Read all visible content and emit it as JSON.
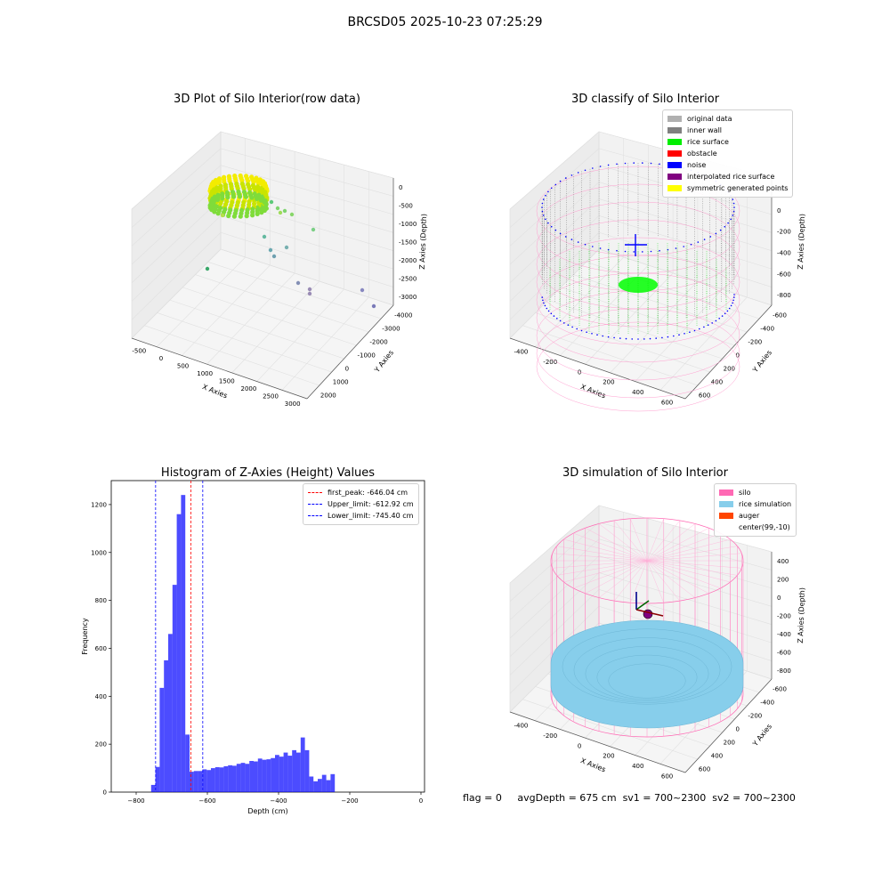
{
  "figure": {
    "suptitle": "BRCSD05 2025-10-23 07:25:29",
    "footer": {
      "flag": "flag = 0",
      "avgDepth": "avgDepth = 675 cm",
      "sv1": "sv1 = 700~2300",
      "sv2": "sv2 = 700~2300"
    }
  },
  "panels": {
    "raw": {
      "title": "3D Plot of Silo Interior(row data)",
      "xlabel": "X Axies",
      "ylabel": "Y Axies",
      "zlabel": "Z Axies (Depth)",
      "xticks": [
        "-500",
        "0",
        "500",
        "1000",
        "1500",
        "2000",
        "2500",
        "3000"
      ],
      "yticks": [
        "-4000",
        "-3000",
        "-2000",
        "-1000",
        "0",
        "1000",
        "2000"
      ],
      "zticks": [
        "0",
        "-500",
        "-1000",
        "-1500",
        "-2000",
        "-2500",
        "-3000"
      ]
    },
    "classify": {
      "title": "3D classify of Silo Interior",
      "xlabel": "X Axies",
      "ylabel": "Y Axies",
      "zlabel": "Z Axies (Depth)",
      "xticks": [
        "-400",
        "-200",
        "0",
        "200",
        "400",
        "600"
      ],
      "yticks": [
        "-600",
        "-400",
        "-200",
        "0",
        "200",
        "400",
        "600"
      ],
      "zticks": [
        "200",
        "0",
        "-200",
        "-400",
        "-600",
        "-800"
      ],
      "legend": [
        {
          "label": "original data",
          "color": "#b0b0b0"
        },
        {
          "label": "inner wall",
          "color": "#808080"
        },
        {
          "label": "rice surface",
          "color": "#00ee00"
        },
        {
          "label": "obstacle",
          "color": "#ff0000"
        },
        {
          "label": "noise",
          "color": "#0000ff"
        },
        {
          "label": "interpolated rice surface",
          "color": "#800080"
        },
        {
          "label": "symmetric generated points",
          "color": "#ffff00"
        }
      ]
    },
    "simulation": {
      "title": "3D simulation of Silo Interior",
      "xlabel": "X Axies",
      "ylabel": "Y Axies",
      "zlabel": "Z Axies (Depth)",
      "xticks": [
        "-400",
        "-200",
        "0",
        "200",
        "400",
        "600"
      ],
      "yticks": [
        "-600",
        "-400",
        "-200",
        "0",
        "200",
        "400",
        "600"
      ],
      "zticks": [
        "400",
        "200",
        "0",
        "-200",
        "-400",
        "-600",
        "-800"
      ],
      "legend": [
        {
          "label": "silo",
          "color": "#ff69b4"
        },
        {
          "label": "rice simulation",
          "color": "#87ceeb"
        },
        {
          "label": "auger",
          "color": "#ff4500"
        },
        {
          "label": "center(99,-10)",
          "color": ""
        }
      ]
    }
  },
  "chart_data": {
    "type": "bar",
    "title": "Histogram of Z-Axies (Height) Values",
    "xlabel": "Depth (cm)",
    "ylabel": "Frequency",
    "xlim": [
      -870,
      10
    ],
    "ylim": [
      0,
      1300
    ],
    "xticks": [
      -800,
      -600,
      -400,
      -200,
      0
    ],
    "yticks": [
      0,
      200,
      400,
      600,
      800,
      1000,
      1200
    ],
    "bin_width": 12,
    "bins": [
      {
        "x0": -758,
        "value": 30
      },
      {
        "x0": -746,
        "value": 105
      },
      {
        "x0": -734,
        "value": 435
      },
      {
        "x0": -722,
        "value": 550
      },
      {
        "x0": -710,
        "value": 660
      },
      {
        "x0": -698,
        "value": 865
      },
      {
        "x0": -686,
        "value": 1160
      },
      {
        "x0": -674,
        "value": 1240
      },
      {
        "x0": -662,
        "value": 240
      },
      {
        "x0": -650,
        "value": 85
      },
      {
        "x0": -638,
        "value": 88
      },
      {
        "x0": -626,
        "value": 88
      },
      {
        "x0": -614,
        "value": 95
      },
      {
        "x0": -602,
        "value": 92
      },
      {
        "x0": -590,
        "value": 100
      },
      {
        "x0": -578,
        "value": 104
      },
      {
        "x0": -566,
        "value": 103
      },
      {
        "x0": -554,
        "value": 108
      },
      {
        "x0": -542,
        "value": 112
      },
      {
        "x0": -530,
        "value": 110
      },
      {
        "x0": -518,
        "value": 118
      },
      {
        "x0": -506,
        "value": 122
      },
      {
        "x0": -494,
        "value": 118
      },
      {
        "x0": -482,
        "value": 130
      },
      {
        "x0": -470,
        "value": 128
      },
      {
        "x0": -458,
        "value": 140
      },
      {
        "x0": -446,
        "value": 135
      },
      {
        "x0": -434,
        "value": 137
      },
      {
        "x0": -422,
        "value": 142
      },
      {
        "x0": -410,
        "value": 155
      },
      {
        "x0": -398,
        "value": 148
      },
      {
        "x0": -386,
        "value": 165
      },
      {
        "x0": -374,
        "value": 152
      },
      {
        "x0": -362,
        "value": 175
      },
      {
        "x0": -350,
        "value": 165
      },
      {
        "x0": -338,
        "value": 228
      },
      {
        "x0": -326,
        "value": 175
      },
      {
        "x0": -314,
        "value": 65
      },
      {
        "x0": -302,
        "value": 45
      },
      {
        "x0": -290,
        "value": 55
      },
      {
        "x0": -278,
        "value": 72
      },
      {
        "x0": -266,
        "value": 50
      },
      {
        "x0": -254,
        "value": 75
      }
    ],
    "color": "#0000ff",
    "vlines": [
      {
        "name": "first_peak: -646.04 cm",
        "x": -646.04,
        "color": "#ff0000"
      },
      {
        "name": "Upper_limit: -612.92 cm",
        "x": -612.92,
        "color": "#0000ff"
      },
      {
        "name": "Lower_limit: -745.40 cm",
        "x": -745.4,
        "color": "#0000ff"
      }
    ],
    "legend_position": "upper right"
  }
}
